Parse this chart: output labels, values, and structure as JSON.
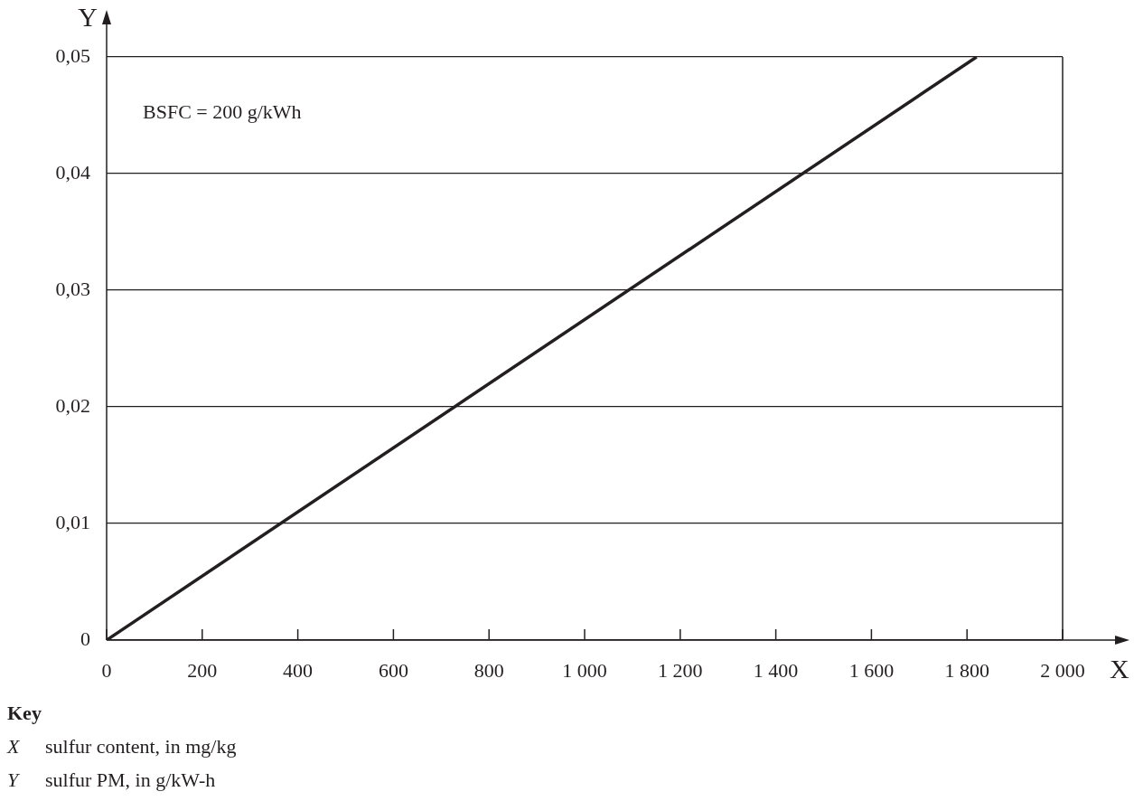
{
  "chart_data": {
    "type": "line",
    "xlabel": "X",
    "ylabel": "Y",
    "x": [
      0,
      1820
    ],
    "series": [
      {
        "color": "#231f20",
        "values": [
          0,
          0.05
        ]
      }
    ],
    "xlim": [
      0,
      2000
    ],
    "ylim": [
      0,
      0.05
    ],
    "xticks": [
      0,
      200,
      400,
      600,
      800,
      {
        "value": 1000,
        "label": "1 000"
      },
      {
        "value": 1200,
        "label": "1 200"
      },
      {
        "value": 1400,
        "label": "1 400"
      },
      {
        "value": 1600,
        "label": "1 600"
      },
      {
        "value": 1800,
        "label": "1 800"
      },
      {
        "value": 2000,
        "label": "2 000"
      }
    ],
    "yticks": [
      0,
      {
        "value": 0.01,
        "label": "0,01"
      },
      {
        "value": 0.02,
        "label": "0,02"
      },
      {
        "value": 0.03,
        "label": "0,03"
      },
      {
        "value": 0.04,
        "label": "0,04"
      },
      {
        "value": 0.05,
        "label": "0,05"
      }
    ],
    "grid": "y",
    "legend": false,
    "marker": "none",
    "line_style": "solid",
    "annotations": [
      "BSFC = 200 g/kWh",
      "Key",
      "X sulfur content, in mg/kg",
      "Y sulfur PM, in g/kW-h"
    ]
  }
}
